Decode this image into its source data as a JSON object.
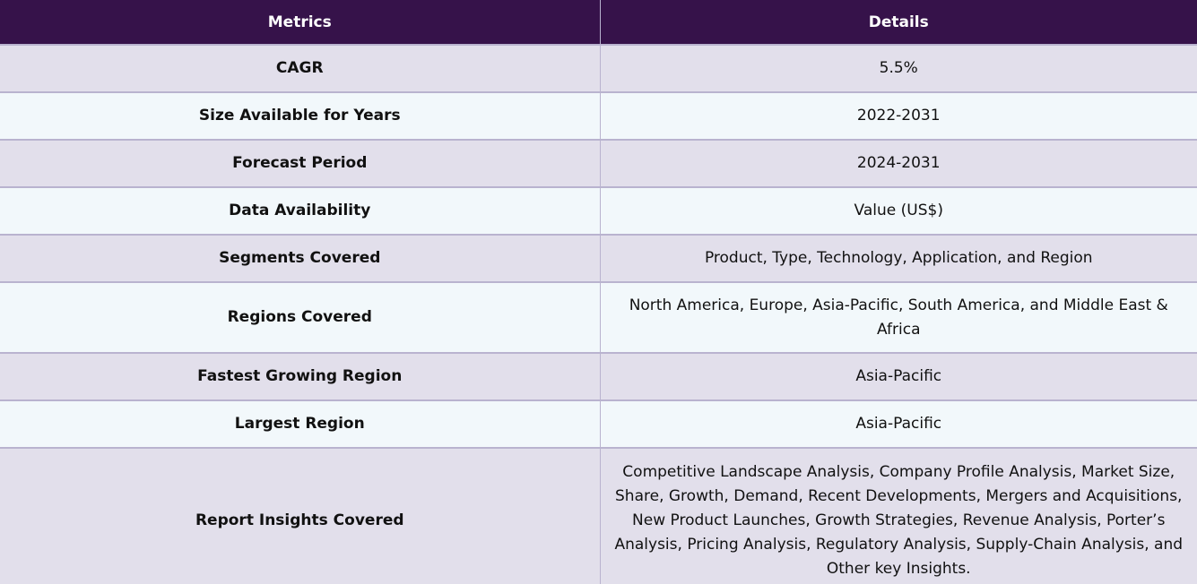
{
  "table": {
    "headers": [
      "Metrics",
      "Details"
    ],
    "rows": [
      {
        "metric": "CAGR",
        "detail": "5.5%"
      },
      {
        "metric": "Size Available for Years",
        "detail": "2022-2031"
      },
      {
        "metric": "Forecast Period",
        "detail": "2024-2031"
      },
      {
        "metric": "Data Availability",
        "detail": "Value (US$)"
      },
      {
        "metric": "Segments Covered",
        "detail": "Product, Type, Technology, Application, and Region"
      },
      {
        "metric": "Regions Covered",
        "detail": "North America, Europe, Asia-Pacific, South America, and Middle East & Africa"
      },
      {
        "metric": "Fastest Growing Region",
        "detail": "Asia-Pacific"
      },
      {
        "metric": "Largest Region",
        "detail": "Asia-Pacific"
      },
      {
        "metric": "Report Insights Covered",
        "detail": "Competitive Landscape Analysis, Company Profile Analysis, Market Size, Share, Growth, Demand, Recent Developments, Mergers and Acquisitions, New Product Launches, Growth Strategies, Revenue Analysis, Porter’s Analysis, Pricing Analysis, Regulatory Analysis, Supply-Chain Analysis, and Other key Insights."
      }
    ]
  },
  "colors": {
    "header_bg": "#36124a",
    "header_text": "#ffffff",
    "row_odd_bg": "#e2dfeb",
    "row_even_bg": "#f2f8fb",
    "border": "#b9b3cf"
  }
}
